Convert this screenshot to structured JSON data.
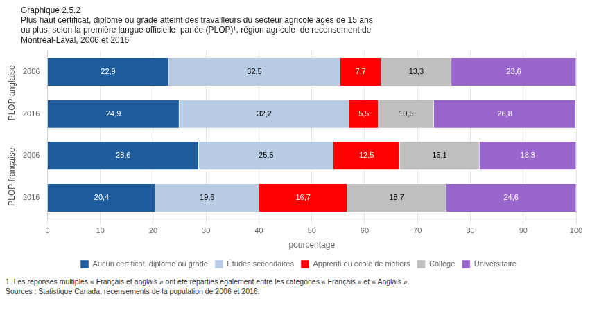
{
  "chart_data": {
    "type": "bar",
    "orientation": "horizontal",
    "stacked": true,
    "data_labels": true,
    "grid": true,
    "legend": "bottom",
    "title": [
      "Graphique 2.5.2",
      "Plus haut certificat, diplôme ou grade atteint des travailleurs du secteur agricole âgés de 15 ans",
      "ou plus, selon la première langue officielle  parlée (PLOP)¹, région agricole  de recensement de",
      "Montréal-Laval, 2006 et 2016"
    ],
    "xlabel": "pourcentage",
    "categories": [
      "2006",
      "2016",
      "2006",
      "2016"
    ],
    "group_labels": [
      "PLOP anglaise",
      "PLOP française"
    ],
    "series": [
      {
        "name": "Aucun certificat, diplôme ou grade",
        "color": "#1F5C9E",
        "values": [
          22.9,
          24.9,
          28.6,
          20.4
        ],
        "value_labels": [
          "22,9",
          "24,9",
          "28,6",
          "20,4"
        ]
      },
      {
        "name": "Études secondaires",
        "color": "#B8CCE4",
        "values": [
          32.5,
          32.2,
          25.5,
          19.6
        ],
        "value_labels": [
          "32,5",
          "32,2",
          "25,5",
          "19,6"
        ]
      },
      {
        "name": "Apprenti ou école de métiers",
        "color": "#FF0000",
        "values": [
          7.7,
          5.5,
          12.5,
          16.7
        ],
        "value_labels": [
          "7,7",
          "5,5",
          "12,5",
          "16,7"
        ]
      },
      {
        "name": "Collège",
        "color": "#BFBFBF",
        "values": [
          13.3,
          10.5,
          15.1,
          18.7
        ],
        "value_labels": [
          "13,3",
          "10,5",
          "15,1",
          "18,7"
        ]
      },
      {
        "name": "Universitaire",
        "color": "#9966CC",
        "values": [
          23.6,
          26.8,
          18.3,
          24.6
        ],
        "value_labels": [
          "23,6",
          "26,8",
          "18,3",
          "24,6"
        ]
      }
    ],
    "xlim": [
      0,
      100
    ],
    "xticks": [
      0,
      10,
      20,
      30,
      40,
      50,
      60,
      70,
      80,
      90,
      100
    ],
    "footnote": "1. Les réponses multiples « Français et anglais » ont été réparties également entre les catégories « Français » et « Anglais ».",
    "source": "Sources : Statistique Canada, recensements de la population de 2006 et 2016."
  }
}
